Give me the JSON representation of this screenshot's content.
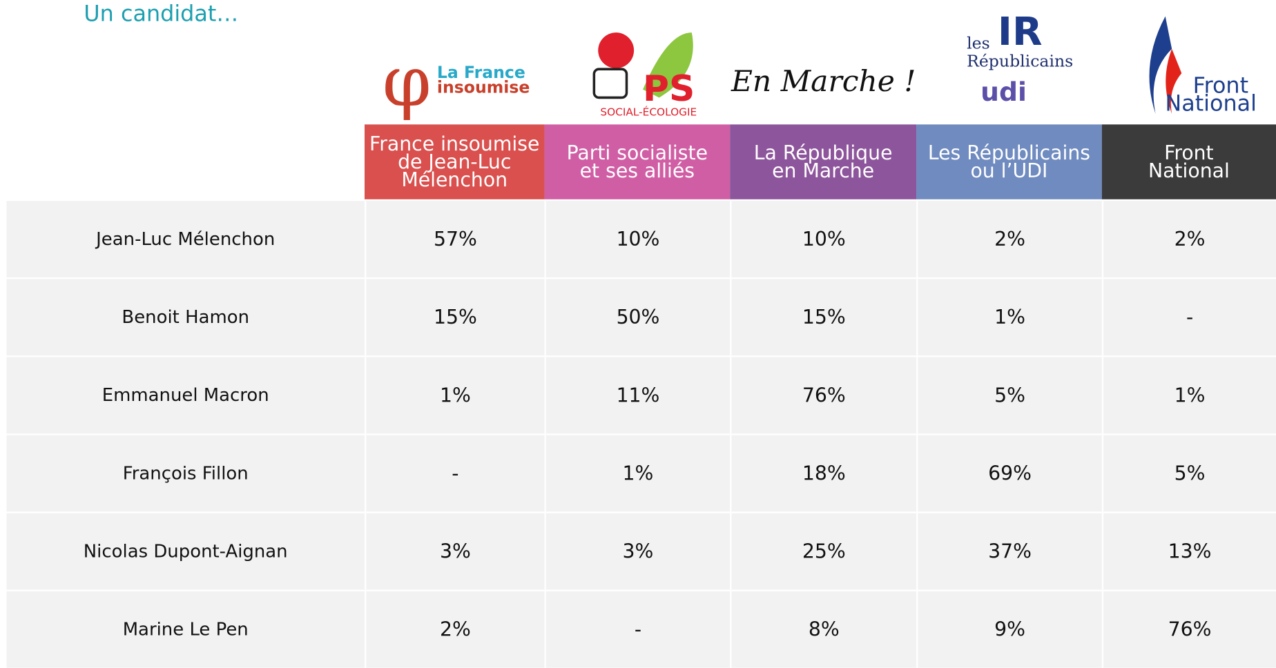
{
  "header": {
    "title": "Un candidat…"
  },
  "logos": [
    {
      "lines": [
        "La France",
        "insoumise"
      ]
    },
    {
      "lines": [
        "PS",
        "SOCIAL-ÉCOLOGIE"
      ]
    },
    {
      "lines": [
        "En Marche !"
      ]
    },
    {
      "lines": [
        "les",
        "IR",
        "Républicains",
        "udi"
      ]
    },
    {
      "lines": [
        "Front",
        "National"
      ]
    }
  ],
  "table": {
    "columns": [
      {
        "lines": [
          "France insoumise",
          "de Jean-Luc",
          "Mélenchon"
        ],
        "color": "#d9504e"
      },
      {
        "lines": [
          "Parti socialiste",
          "et ses alliés"
        ],
        "color": "#d05ea4"
      },
      {
        "lines": [
          "La République",
          "en Marche"
        ],
        "color": "#8d559b"
      },
      {
        "lines": [
          "Les Républicains",
          "ou l’UDI"
        ],
        "color": "#6f8bbf"
      },
      {
        "lines": [
          "Front",
          "National"
        ],
        "color": "#3b3b3b"
      }
    ],
    "rows": [
      {
        "label": "Jean-Luc Mélenchon",
        "cells": [
          "57%",
          "10%",
          "10%",
          "2%",
          "2%"
        ]
      },
      {
        "label": "Benoit Hamon",
        "cells": [
          "15%",
          "50%",
          "15%",
          "1%",
          "-"
        ]
      },
      {
        "label": "Emmanuel Macron",
        "cells": [
          "1%",
          "11%",
          "76%",
          "5%",
          "1%"
        ]
      },
      {
        "label": "François Fillon",
        "cells": [
          "-",
          "1%",
          "18%",
          "69%",
          "5%"
        ]
      },
      {
        "label": "Nicolas Dupont-Aignan",
        "cells": [
          "3%",
          "3%",
          "25%",
          "37%",
          "13%"
        ]
      },
      {
        "label": "Marine Le Pen",
        "cells": [
          "2%",
          "-",
          "8%",
          "9%",
          "76%"
        ]
      }
    ]
  }
}
